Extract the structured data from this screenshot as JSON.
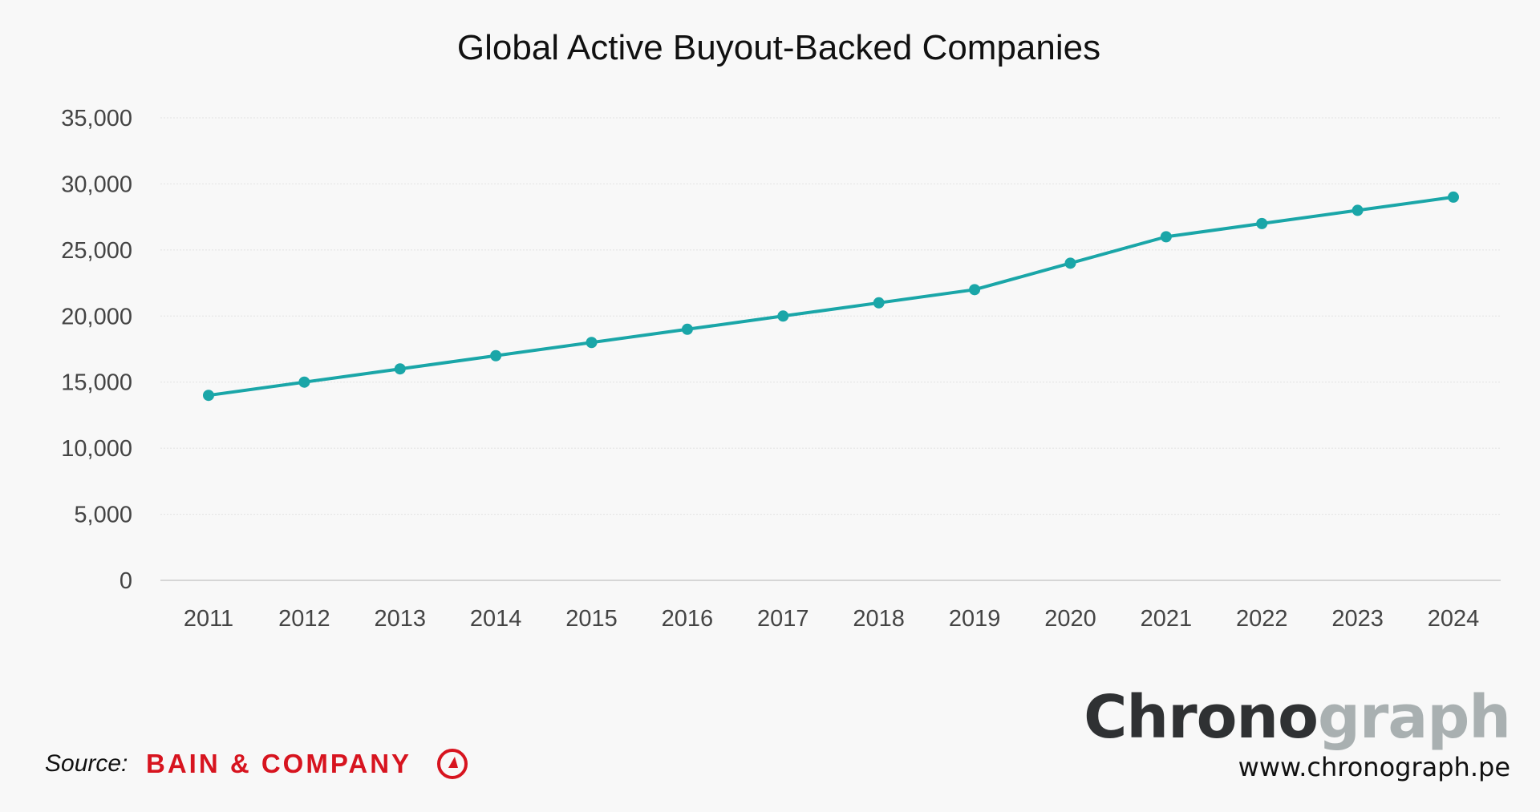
{
  "chart_data": {
    "type": "line",
    "title": "Global Active Buyout-Backed Companies",
    "xlabel": "",
    "ylabel": "",
    "categories": [
      "2011",
      "2012",
      "2013",
      "2014",
      "2015",
      "2016",
      "2017",
      "2018",
      "2019",
      "2020",
      "2021",
      "2022",
      "2023",
      "2024"
    ],
    "values": [
      14000,
      15000,
      16000,
      17000,
      18000,
      19000,
      20000,
      21000,
      22000,
      24000,
      26000,
      27000,
      28000,
      29000
    ],
    "ylim": [
      0,
      35000
    ],
    "yticks": [
      0,
      5000,
      10000,
      15000,
      20000,
      25000,
      30000,
      35000
    ],
    "ytick_labels": [
      "0",
      "5,000",
      "10,000",
      "15,000",
      "20,000",
      "25,000",
      "30,000",
      "35,000"
    ],
    "grid": true,
    "legend": "none",
    "color": "#1aa6a8"
  },
  "footer": {
    "source_label": "Source:",
    "source_name": "BAIN & COMPANY",
    "brand_part1": "Chrono",
    "brand_part2": "graph",
    "url": "www.chronograph.pe"
  }
}
